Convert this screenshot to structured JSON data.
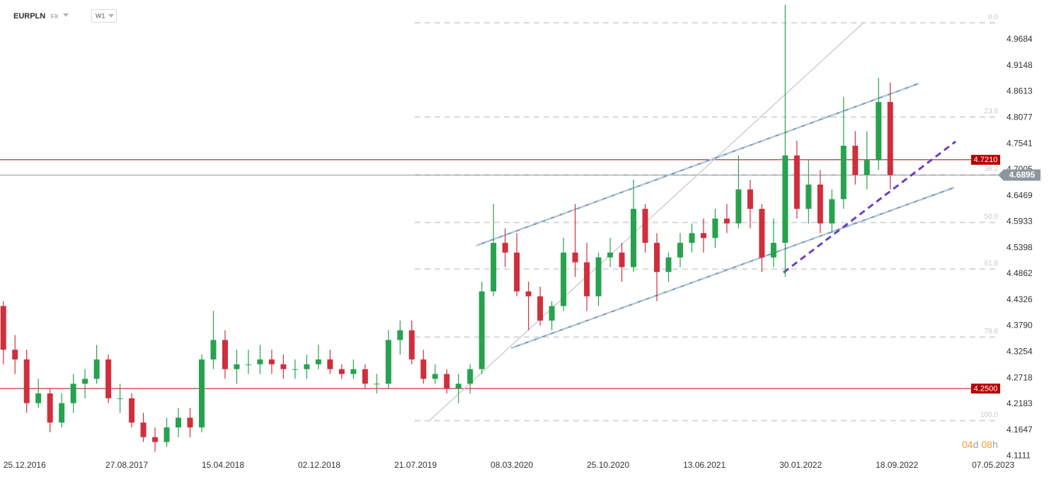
{
  "header": {
    "symbol": "EURPLN",
    "market": "FX",
    "interval": "W1"
  },
  "countdown": {
    "days": "04",
    "days_unit": "d",
    "hours": "08",
    "hours_unit": "h"
  },
  "chart_data": {
    "type": "candlestick",
    "up_color": "#27a24e",
    "down_color": "#cf2f3c",
    "x": [
      "25.12.2016",
      "22.01.2017",
      "19.02.2017",
      "19.03.2017",
      "16.04.2017",
      "14.05.2017",
      "11.06.2017",
      "09.07.2017",
      "06.08.2017",
      "03.09.2017",
      "01.10.2017",
      "29.10.2017",
      "26.11.2017",
      "24.12.2017",
      "21.01.2018",
      "18.02.2018",
      "18.03.2018",
      "15.04.2018",
      "13.05.2018",
      "10.06.2018",
      "08.07.2018",
      "05.08.2018",
      "02.09.2018",
      "30.09.2018",
      "28.10.2018",
      "25.11.2018",
      "23.12.2018",
      "20.01.2019",
      "17.02.2019",
      "17.03.2019",
      "14.04.2019",
      "12.05.2019",
      "09.06.2019",
      "07.07.2019",
      "04.08.2019",
      "01.09.2019",
      "29.09.2019",
      "27.10.2019",
      "24.11.2019",
      "22.12.2019",
      "19.01.2020",
      "16.02.2020",
      "15.03.2020",
      "12.04.2020",
      "10.05.2020",
      "07.06.2020",
      "05.07.2020",
      "02.08.2020",
      "30.08.2020",
      "27.09.2020",
      "25.10.2020",
      "22.11.2020",
      "20.12.2020",
      "17.01.2021",
      "14.02.2021",
      "14.03.2021",
      "11.04.2021",
      "09.05.2021",
      "06.06.2021",
      "04.07.2021",
      "01.08.2021",
      "29.08.2021",
      "26.09.2021",
      "24.10.2021",
      "21.11.2021",
      "19.12.2021",
      "16.01.2022",
      "13.02.2022",
      "13.03.2022",
      "10.04.2022",
      "08.05.2022",
      "05.06.2022",
      "03.07.2022",
      "31.07.2022",
      "28.08.2022",
      "25.09.2022",
      "23.10.2022"
    ],
    "open": [
      4.42,
      4.33,
      4.31,
      4.22,
      4.24,
      4.18,
      4.22,
      4.26,
      4.27,
      4.31,
      4.23,
      4.23,
      4.18,
      4.15,
      4.14,
      4.17,
      4.19,
      4.17,
      4.31,
      4.35,
      4.29,
      4.3,
      4.3,
      4.31,
      4.3,
      4.29,
      4.29,
      4.3,
      4.31,
      4.29,
      4.28,
      4.29,
      4.26,
      4.26,
      4.35,
      4.37,
      4.31,
      4.27,
      4.28,
      4.25,
      4.26,
      4.29,
      4.45,
      4.55,
      4.53,
      4.45,
      4.44,
      4.39,
      4.42,
      4.53,
      4.51,
      4.44,
      4.52,
      4.53,
      4.5,
      4.62,
      4.55,
      4.49,
      4.52,
      4.55,
      4.57,
      4.56,
      4.6,
      4.59,
      4.66,
      4.62,
      4.52,
      4.55,
      4.73,
      4.62,
      4.67,
      4.59,
      4.64,
      4.75,
      4.69,
      4.72,
      4.84
    ],
    "high": [
      4.43,
      4.36,
      4.33,
      4.27,
      4.25,
      4.24,
      4.28,
      4.29,
      4.34,
      4.32,
      4.26,
      4.24,
      4.2,
      4.17,
      4.19,
      4.21,
      4.21,
      4.32,
      4.41,
      4.37,
      4.33,
      4.33,
      4.34,
      4.33,
      4.32,
      4.31,
      4.32,
      4.34,
      4.33,
      4.3,
      4.31,
      4.3,
      4.28,
      4.37,
      4.39,
      4.39,
      4.33,
      4.3,
      4.29,
      4.28,
      4.3,
      4.47,
      4.63,
      4.58,
      4.57,
      4.47,
      4.46,
      4.43,
      4.56,
      4.63,
      4.55,
      4.53,
      4.56,
      4.55,
      4.68,
      4.63,
      4.57,
      4.53,
      4.57,
      4.59,
      4.6,
      4.62,
      4.63,
      4.73,
      4.68,
      4.63,
      4.6,
      5.04,
      4.76,
      4.72,
      4.7,
      4.66,
      4.85,
      4.78,
      4.78,
      4.89,
      4.88
    ],
    "low": [
      4.3,
      4.28,
      4.2,
      4.21,
      4.16,
      4.17,
      4.2,
      4.23,
      4.26,
      4.22,
      4.2,
      4.17,
      4.14,
      4.12,
      4.13,
      4.15,
      4.15,
      4.16,
      4.29,
      4.27,
      4.26,
      4.28,
      4.28,
      4.28,
      4.27,
      4.27,
      4.27,
      4.29,
      4.28,
      4.27,
      4.27,
      4.25,
      4.24,
      4.25,
      4.32,
      4.3,
      4.26,
      4.26,
      4.24,
      4.22,
      4.24,
      4.28,
      4.44,
      4.5,
      4.44,
      4.37,
      4.38,
      4.37,
      4.41,
      4.48,
      4.41,
      4.42,
      4.5,
      4.47,
      4.49,
      4.53,
      4.43,
      4.47,
      4.5,
      4.53,
      4.53,
      4.54,
      4.57,
      4.58,
      4.58,
      4.49,
      4.5,
      4.48,
      4.6,
      4.59,
      4.57,
      4.57,
      4.62,
      4.67,
      4.66,
      4.7,
      4.66
    ],
    "close": [
      4.33,
      4.31,
      4.22,
      4.24,
      4.18,
      4.22,
      4.26,
      4.27,
      4.31,
      4.23,
      4.23,
      4.18,
      4.15,
      4.14,
      4.17,
      4.19,
      4.17,
      4.31,
      4.35,
      4.29,
      4.3,
      4.3,
      4.31,
      4.3,
      4.29,
      4.29,
      4.3,
      4.31,
      4.29,
      4.28,
      4.29,
      4.26,
      4.26,
      4.35,
      4.37,
      4.31,
      4.27,
      4.28,
      4.25,
      4.26,
      4.29,
      4.45,
      4.55,
      4.53,
      4.45,
      4.44,
      4.39,
      4.42,
      4.53,
      4.51,
      4.44,
      4.52,
      4.53,
      4.5,
      4.62,
      4.55,
      4.49,
      4.52,
      4.55,
      4.57,
      4.56,
      4.6,
      4.59,
      4.66,
      4.62,
      4.52,
      4.55,
      4.73,
      4.62,
      4.67,
      4.59,
      4.64,
      4.75,
      4.69,
      4.72,
      4.84,
      4.6895
    ],
    "xlim": [
      "17.12.2016",
      "12.07.2023"
    ],
    "xticks": [
      "25.12.2016",
      "27.08.2017",
      "15.04.2018",
      "02.12.2018",
      "21.07.2019",
      "08.03.2020",
      "25.10.2020",
      "13.06.2021",
      "30.01.2022",
      "18.09.2022",
      "07.05.2023"
    ],
    "ylim": [
      4.1,
      5.05
    ],
    "yticks": [
      4.1111,
      4.1647,
      4.2183,
      4.2718,
      4.3254,
      {
        "value": 4.379,
        "label": "4.3790"
      },
      4.4326,
      4.4862,
      4.5398,
      4.5933,
      4.6469,
      4.7005,
      4.7541,
      4.8077,
      4.8613,
      4.9148,
      4.9684
    ],
    "price_lines": [
      {
        "value": 4.721,
        "label": "4.7210",
        "color": "#b40000"
      },
      {
        "value": 4.25,
        "label": "4.2500",
        "color": "#b40000"
      }
    ],
    "current_price": {
      "value": 4.6895,
      "color": "#8e969c"
    },
    "fibonacci": {
      "start": "08.09.2019",
      "color": "#d4d8dc",
      "levels": [
        {
          "label": "0.0",
          "value": 5.003
        },
        {
          "label": "23.6",
          "value": 4.809
        },
        {
          "label": "38.2",
          "value": 4.69
        },
        {
          "label": "50.0",
          "value": 4.592
        },
        {
          "label": "61.8",
          "value": 4.496
        },
        {
          "label": "78.6",
          "value": 4.356
        },
        {
          "label": "100.0",
          "value": 4.184
        }
      ]
    }
  }
}
